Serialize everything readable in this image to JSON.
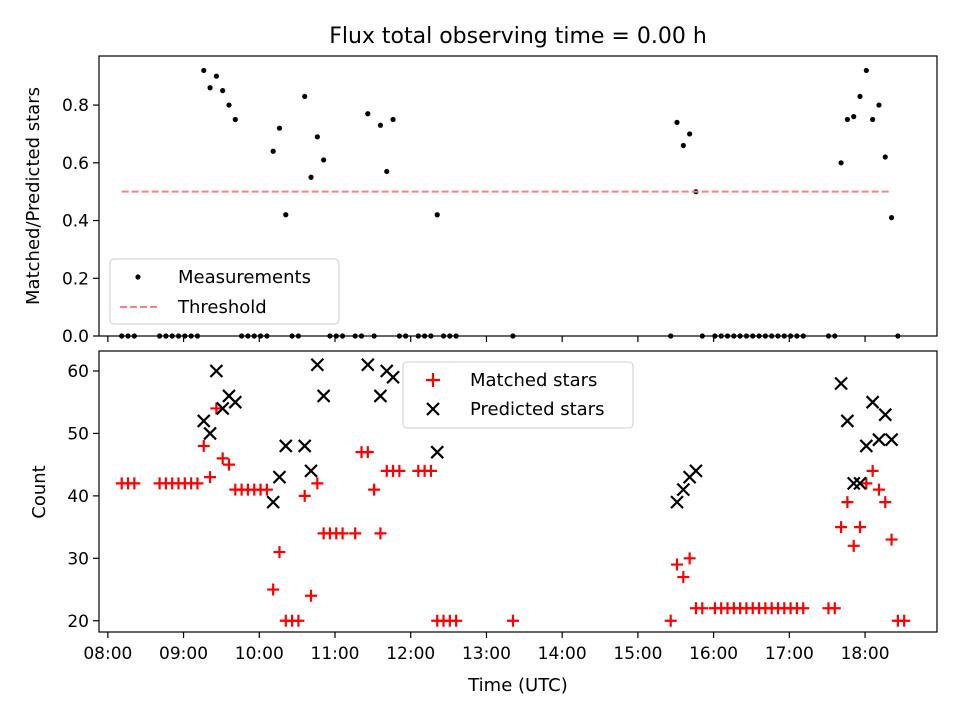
{
  "figure": {
    "title": "Flux total observing time = 0.00 h"
  },
  "chart_data": [
    {
      "type": "scatter",
      "title": "Flux total observing time = 0.00 h",
      "xlabel": "",
      "ylabel": "Matched/Predicted stars",
      "xlim": [
        "07:53",
        "18:57"
      ],
      "ylim": [
        0,
        0.97
      ],
      "y_ticks": [
        0.0,
        0.2,
        0.4,
        0.6,
        0.8
      ],
      "y_tick_labels": [
        "0.0",
        "0.2",
        "0.4",
        "0.6",
        "0.8"
      ],
      "grid": false,
      "legend_position": "lower-left",
      "legend": [
        "Measurements",
        "Threshold"
      ],
      "series": [
        {
          "name": "Measurements",
          "marker": "dot",
          "color": "#000000",
          "points": [
            [
              "08:11",
              0
            ],
            [
              "08:16",
              0
            ],
            [
              "08:21",
              0
            ],
            [
              "08:41",
              0
            ],
            [
              "08:46",
              0
            ],
            [
              "08:51",
              0
            ],
            [
              "08:56",
              0
            ],
            [
              "09:01",
              0
            ],
            [
              "09:06",
              0
            ],
            [
              "09:11",
              0
            ],
            [
              "09:16",
              0.92
            ],
            [
              "09:21",
              0.86
            ],
            [
              "09:26",
              0.9
            ],
            [
              "09:31",
              0.85
            ],
            [
              "09:36",
              0.8
            ],
            [
              "09:41",
              0.75
            ],
            [
              "09:46",
              0
            ],
            [
              "09:51",
              0
            ],
            [
              "09:56",
              0
            ],
            [
              "10:01",
              0
            ],
            [
              "10:06",
              0
            ],
            [
              "10:11",
              0.64
            ],
            [
              "10:16",
              0.72
            ],
            [
              "10:21",
              0.42
            ],
            [
              "10:26",
              0
            ],
            [
              "10:31",
              0
            ],
            [
              "10:36",
              0.83
            ],
            [
              "10:41",
              0.55
            ],
            [
              "10:46",
              0.69
            ],
            [
              "10:51",
              0.61
            ],
            [
              "10:56",
              0
            ],
            [
              "11:01",
              0
            ],
            [
              "11:06",
              0
            ],
            [
              "11:16",
              0
            ],
            [
              "11:21",
              0
            ],
            [
              "11:26",
              0.77
            ],
            [
              "11:31",
              0
            ],
            [
              "11:36",
              0.73
            ],
            [
              "11:41",
              0.57
            ],
            [
              "11:46",
              0.75
            ],
            [
              "11:51",
              0
            ],
            [
              "11:56",
              0
            ],
            [
              "12:06",
              0
            ],
            [
              "12:11",
              0
            ],
            [
              "12:16",
              0
            ],
            [
              "12:21",
              0.42
            ],
            [
              "12:26",
              0
            ],
            [
              "12:31",
              0
            ],
            [
              "12:36",
              0
            ],
            [
              "13:21",
              0
            ],
            [
              "15:26",
              0
            ],
            [
              "15:31",
              0.74
            ],
            [
              "15:36",
              0.66
            ],
            [
              "15:41",
              0.7
            ],
            [
              "15:46",
              0.5
            ],
            [
              "15:51",
              0
            ],
            [
              "16:01",
              0
            ],
            [
              "16:06",
              0
            ],
            [
              "16:11",
              0
            ],
            [
              "16:16",
              0
            ],
            [
              "16:21",
              0
            ],
            [
              "16:26",
              0
            ],
            [
              "16:31",
              0
            ],
            [
              "16:36",
              0
            ],
            [
              "16:41",
              0
            ],
            [
              "16:46",
              0
            ],
            [
              "16:51",
              0
            ],
            [
              "16:56",
              0
            ],
            [
              "17:01",
              0
            ],
            [
              "17:06",
              0
            ],
            [
              "17:11",
              0
            ],
            [
              "17:31",
              0
            ],
            [
              "17:36",
              0
            ],
            [
              "17:41",
              0.6
            ],
            [
              "17:46",
              0.75
            ],
            [
              "17:51",
              0.76
            ],
            [
              "17:56",
              0.83
            ],
            [
              "18:01",
              0.92
            ],
            [
              "18:06",
              0.75
            ],
            [
              "18:11",
              0.8
            ],
            [
              "18:16",
              0.62
            ],
            [
              "18:21",
              0.41
            ],
            [
              "18:26",
              0
            ]
          ]
        },
        {
          "name": "Threshold",
          "style": "dashed",
          "color": "#ff7f7f",
          "points": [
            [
              "08:11",
              0.5
            ],
            [
              "18:21",
              0.5
            ]
          ]
        }
      ]
    },
    {
      "type": "scatter",
      "title": "",
      "xlabel": "Time (UTC)",
      "ylabel": "Count",
      "xlim": [
        "07:53",
        "18:57"
      ],
      "ylim": [
        18.2,
        63.2
      ],
      "x_ticks": [
        "08:00",
        "09:00",
        "10:00",
        "11:00",
        "12:00",
        "13:00",
        "14:00",
        "15:00",
        "16:00",
        "17:00",
        "18:00"
      ],
      "y_ticks": [
        20,
        30,
        40,
        50,
        60
      ],
      "y_tick_labels": [
        "20",
        "30",
        "40",
        "50",
        "60"
      ],
      "grid": false,
      "legend_position": "upper-center",
      "legend": [
        "Matched stars",
        "Predicted stars"
      ],
      "series": [
        {
          "name": "Matched stars",
          "marker": "plus",
          "color": "#ff0000",
          "points": [
            [
              "08:11",
              42
            ],
            [
              "08:16",
              42
            ],
            [
              "08:21",
              42
            ],
            [
              "08:41",
              42
            ],
            [
              "08:46",
              42
            ],
            [
              "08:51",
              42
            ],
            [
              "08:56",
              42
            ],
            [
              "09:01",
              42
            ],
            [
              "09:06",
              42
            ],
            [
              "09:11",
              42
            ],
            [
              "09:16",
              48
            ],
            [
              "09:21",
              43
            ],
            [
              "09:26",
              54
            ],
            [
              "09:31",
              46
            ],
            [
              "09:36",
              45
            ],
            [
              "09:41",
              41
            ],
            [
              "09:46",
              41
            ],
            [
              "09:51",
              41
            ],
            [
              "09:56",
              41
            ],
            [
              "10:01",
              41
            ],
            [
              "10:06",
              41
            ],
            [
              "10:11",
              25
            ],
            [
              "10:16",
              31
            ],
            [
              "10:21",
              20
            ],
            [
              "10:26",
              20
            ],
            [
              "10:31",
              20
            ],
            [
              "10:36",
              40
            ],
            [
              "10:41",
              24
            ],
            [
              "10:46",
              42
            ],
            [
              "10:51",
              34
            ],
            [
              "10:56",
              34
            ],
            [
              "11:01",
              34
            ],
            [
              "11:06",
              34
            ],
            [
              "11:16",
              34
            ],
            [
              "11:21",
              47
            ],
            [
              "11:26",
              47
            ],
            [
              "11:31",
              41
            ],
            [
              "11:36",
              34
            ],
            [
              "11:41",
              44
            ],
            [
              "11:46",
              44
            ],
            [
              "11:51",
              44
            ],
            [
              "12:06",
              44
            ],
            [
              "12:11",
              44
            ],
            [
              "12:16",
              44
            ],
            [
              "12:21",
              20
            ],
            [
              "12:26",
              20
            ],
            [
              "12:31",
              20
            ],
            [
              "12:36",
              20
            ],
            [
              "13:21",
              20
            ],
            [
              "15:26",
              20
            ],
            [
              "15:31",
              29
            ],
            [
              "15:36",
              27
            ],
            [
              "15:41",
              30
            ],
            [
              "15:46",
              22
            ],
            [
              "15:51",
              22
            ],
            [
              "16:01",
              22
            ],
            [
              "16:06",
              22
            ],
            [
              "16:11",
              22
            ],
            [
              "16:16",
              22
            ],
            [
              "16:21",
              22
            ],
            [
              "16:26",
              22
            ],
            [
              "16:31",
              22
            ],
            [
              "16:36",
              22
            ],
            [
              "16:41",
              22
            ],
            [
              "16:46",
              22
            ],
            [
              "16:51",
              22
            ],
            [
              "16:56",
              22
            ],
            [
              "17:01",
              22
            ],
            [
              "17:06",
              22
            ],
            [
              "17:11",
              22
            ],
            [
              "17:31",
              22
            ],
            [
              "17:36",
              22
            ],
            [
              "17:41",
              35
            ],
            [
              "17:46",
              39
            ],
            [
              "17:51",
              32
            ],
            [
              "17:56",
              35
            ],
            [
              "18:01",
              42
            ],
            [
              "18:06",
              44
            ],
            [
              "18:11",
              41
            ],
            [
              "18:16",
              39
            ],
            [
              "18:21",
              33
            ],
            [
              "18:26",
              20
            ],
            [
              "18:31",
              20
            ]
          ]
        },
        {
          "name": "Predicted stars",
          "marker": "x",
          "color": "#000000",
          "points": [
            [
              "09:16",
              52
            ],
            [
              "09:21",
              50
            ],
            [
              "09:26",
              60
            ],
            [
              "09:31",
              54
            ],
            [
              "09:36",
              56
            ],
            [
              "09:41",
              55
            ],
            [
              "10:11",
              39
            ],
            [
              "10:16",
              43
            ],
            [
              "10:21",
              48
            ],
            [
              "10:36",
              48
            ],
            [
              "10:41",
              44
            ],
            [
              "10:46",
              61
            ],
            [
              "10:51",
              56
            ],
            [
              "11:26",
              61
            ],
            [
              "11:36",
              56
            ],
            [
              "11:41",
              60
            ],
            [
              "11:46",
              59
            ],
            [
              "12:21",
              47
            ],
            [
              "15:31",
              39
            ],
            [
              "15:36",
              41
            ],
            [
              "15:41",
              43
            ],
            [
              "15:46",
              44
            ],
            [
              "17:41",
              58
            ],
            [
              "17:46",
              52
            ],
            [
              "17:51",
              42
            ],
            [
              "17:56",
              42
            ],
            [
              "18:01",
              48
            ],
            [
              "18:06",
              55
            ],
            [
              "18:11",
              49
            ],
            [
              "18:16",
              53
            ],
            [
              "18:21",
              49
            ]
          ]
        }
      ]
    }
  ]
}
